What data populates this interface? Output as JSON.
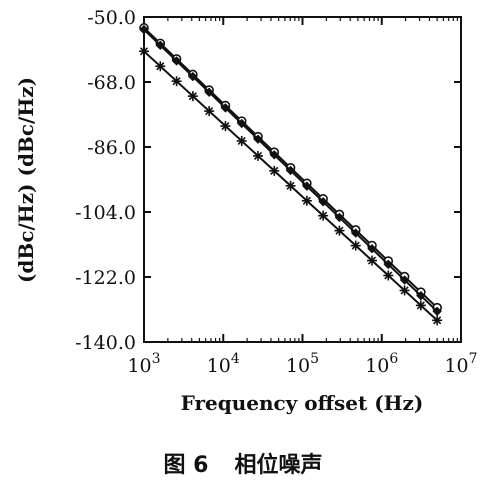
{
  "chart_data": {
    "type": "line",
    "title": "",
    "xlabel": "Frequency offset (Hz)",
    "ylabel": "(dBc/Hz) (dBc/Hz)",
    "x_scale": "log",
    "xlim": [
      1000,
      10000000
    ],
    "ylim": [
      -140.0,
      -50.0
    ],
    "x_ticks": [
      1000,
      10000,
      100000,
      1000000,
      10000000
    ],
    "x_tick_labels": [
      {
        "base": "10",
        "exp": "3"
      },
      {
        "base": "10",
        "exp": "4"
      },
      {
        "base": "10",
        "exp": "5"
      },
      {
        "base": "10",
        "exp": "6"
      },
      {
        "base": "10",
        "exp": "7"
      }
    ],
    "y_ticks": [
      "-50.0",
      "-68.0",
      "-86.0",
      "-104.0",
      "-122.0",
      "-140.0"
    ],
    "grid": false,
    "legend": "none",
    "series": [
      {
        "marker": "circle",
        "x": [
          1000,
          5000000
        ],
        "y": [
          -53.0,
          -130.5
        ]
      },
      {
        "marker": "diamond",
        "x": [
          1000,
          5000000
        ],
        "y": [
          -53.5,
          -131.5
        ]
      },
      {
        "marker": "star",
        "x": [
          1000,
          5000000
        ],
        "y": [
          -59.5,
          -134.0
        ]
      }
    ]
  },
  "caption": {
    "figure_num": "图 6",
    "text": "相位噪声"
  }
}
